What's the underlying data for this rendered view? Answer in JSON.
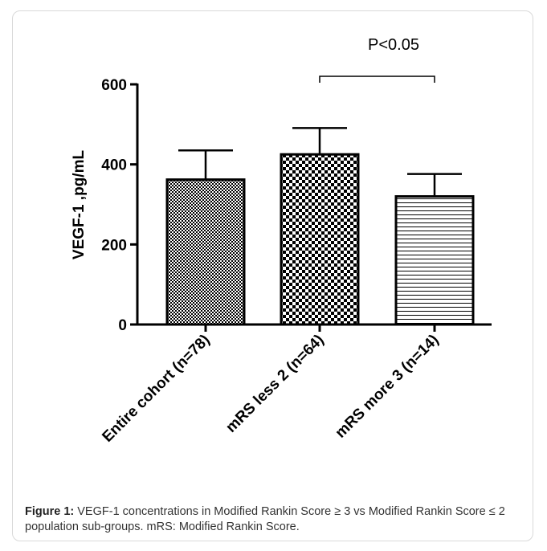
{
  "chart_data": {
    "type": "bar",
    "categories": [
      "Entire cohort (n=78)",
      "mRS less 2 (n=64)",
      "mRS more 3 (n=14)"
    ],
    "values": [
      362,
      425,
      320
    ],
    "error_upper": [
      435,
      491,
      376
    ],
    "patterns": [
      "fine-check",
      "coarse-check",
      "horizontal-lines"
    ],
    "ylabel": "VEGF-1 ,pg/mL",
    "ylim": [
      0,
      600
    ],
    "yticks": [
      0,
      200,
      400,
      600
    ],
    "annotation": {
      "text": "P<0.05",
      "between": [
        "mRS less 2 (n=64)",
        "mRS more 3 (n=14)"
      ]
    }
  },
  "caption": {
    "label": "Figure 1:",
    "text": " VEGF-1 concentrations in Modified Rankin Score ≥ 3 vs Modified Rankin Score ≤ 2 population sub-groups. mRS: Modified Rankin Score."
  },
  "colors": {
    "ink": "#000000",
    "frame_border": "#d9d9d9",
    "caption_text": "#333333"
  }
}
